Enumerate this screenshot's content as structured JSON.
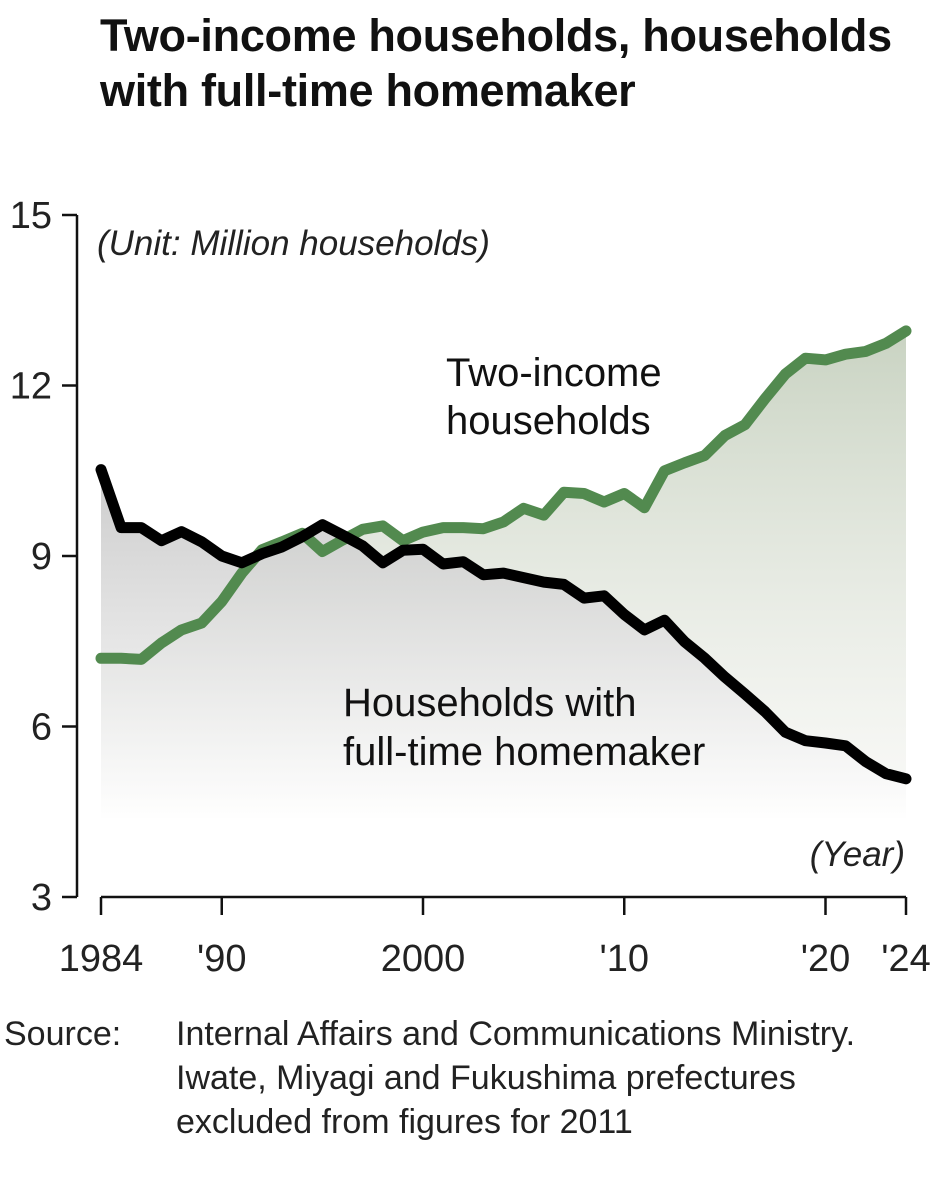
{
  "title": "Two-income households, households with full-time homemaker",
  "unit_label": "(Unit: Million households)",
  "x_unit_label": "(Year)",
  "source_label": "Source:",
  "source_text": "Internal Affairs and Communications Ministry. Iwate, Miyagi and Fukushima prefectures excluded from figures for 2011",
  "annotations": {
    "two_income_line1": "Two-income",
    "two_income_line2": "households",
    "homemaker_line1": "Households with",
    "homemaker_line2": "full-time homemaker"
  },
  "colors": {
    "two_income": "#528a4f",
    "homemaker": "#000000"
  },
  "chart_data": {
    "type": "line",
    "title": "Two-income households, households with full-time homemaker",
    "xlabel": "(Year)",
    "ylabel": "(Unit: Million households)",
    "ylim": [
      3,
      15
    ],
    "yticks": [
      3,
      6,
      9,
      12,
      15
    ],
    "xticks": [
      {
        "year": 1984,
        "label": "1984"
      },
      {
        "year": 1990,
        "label": "'90"
      },
      {
        "year": 2000,
        "label": "2000"
      },
      {
        "year": 2010,
        "label": "'10"
      },
      {
        "year": 2020,
        "label": "'20"
      },
      {
        "year": 2024,
        "label": "'24"
      }
    ],
    "grid": false,
    "legend": "inline annotations",
    "x": [
      1984,
      1985,
      1986,
      1987,
      1988,
      1989,
      1990,
      1991,
      1992,
      1993,
      1994,
      1995,
      1996,
      1997,
      1998,
      1999,
      2000,
      2001,
      2002,
      2003,
      2004,
      2005,
      2006,
      2007,
      2008,
      2009,
      2010,
      2011,
      2012,
      2013,
      2014,
      2015,
      2016,
      2017,
      2018,
      2019,
      2020,
      2021,
      2022,
      2023,
      2024
    ],
    "series": [
      {
        "name": "Two-income households",
        "color": "#528a4f",
        "values": [
          7.2,
          7.2,
          7.18,
          7.47,
          7.7,
          7.82,
          8.2,
          8.7,
          9.11,
          9.25,
          9.4,
          9.08,
          9.28,
          9.47,
          9.53,
          9.27,
          9.42,
          9.5,
          9.5,
          9.48,
          9.6,
          9.84,
          9.72,
          10.12,
          10.1,
          9.95,
          10.1,
          9.85,
          10.5,
          10.64,
          10.77,
          11.12,
          11.31,
          11.77,
          12.2,
          12.48,
          12.45,
          12.55,
          12.6,
          12.74,
          12.96
        ]
      },
      {
        "name": "Households with full-time homemaker",
        "color": "#000000",
        "values": [
          10.52,
          9.5,
          9.5,
          9.27,
          9.43,
          9.25,
          9.0,
          8.88,
          9.04,
          9.16,
          9.34,
          9.55,
          9.37,
          9.18,
          8.88,
          9.1,
          9.12,
          8.86,
          8.9,
          8.67,
          8.7,
          8.62,
          8.54,
          8.5,
          8.26,
          8.3,
          7.97,
          7.7,
          7.87,
          7.49,
          7.2,
          6.87,
          6.57,
          6.26,
          5.9,
          5.75,
          5.71,
          5.66,
          5.38,
          5.17,
          5.08
        ]
      }
    ]
  }
}
